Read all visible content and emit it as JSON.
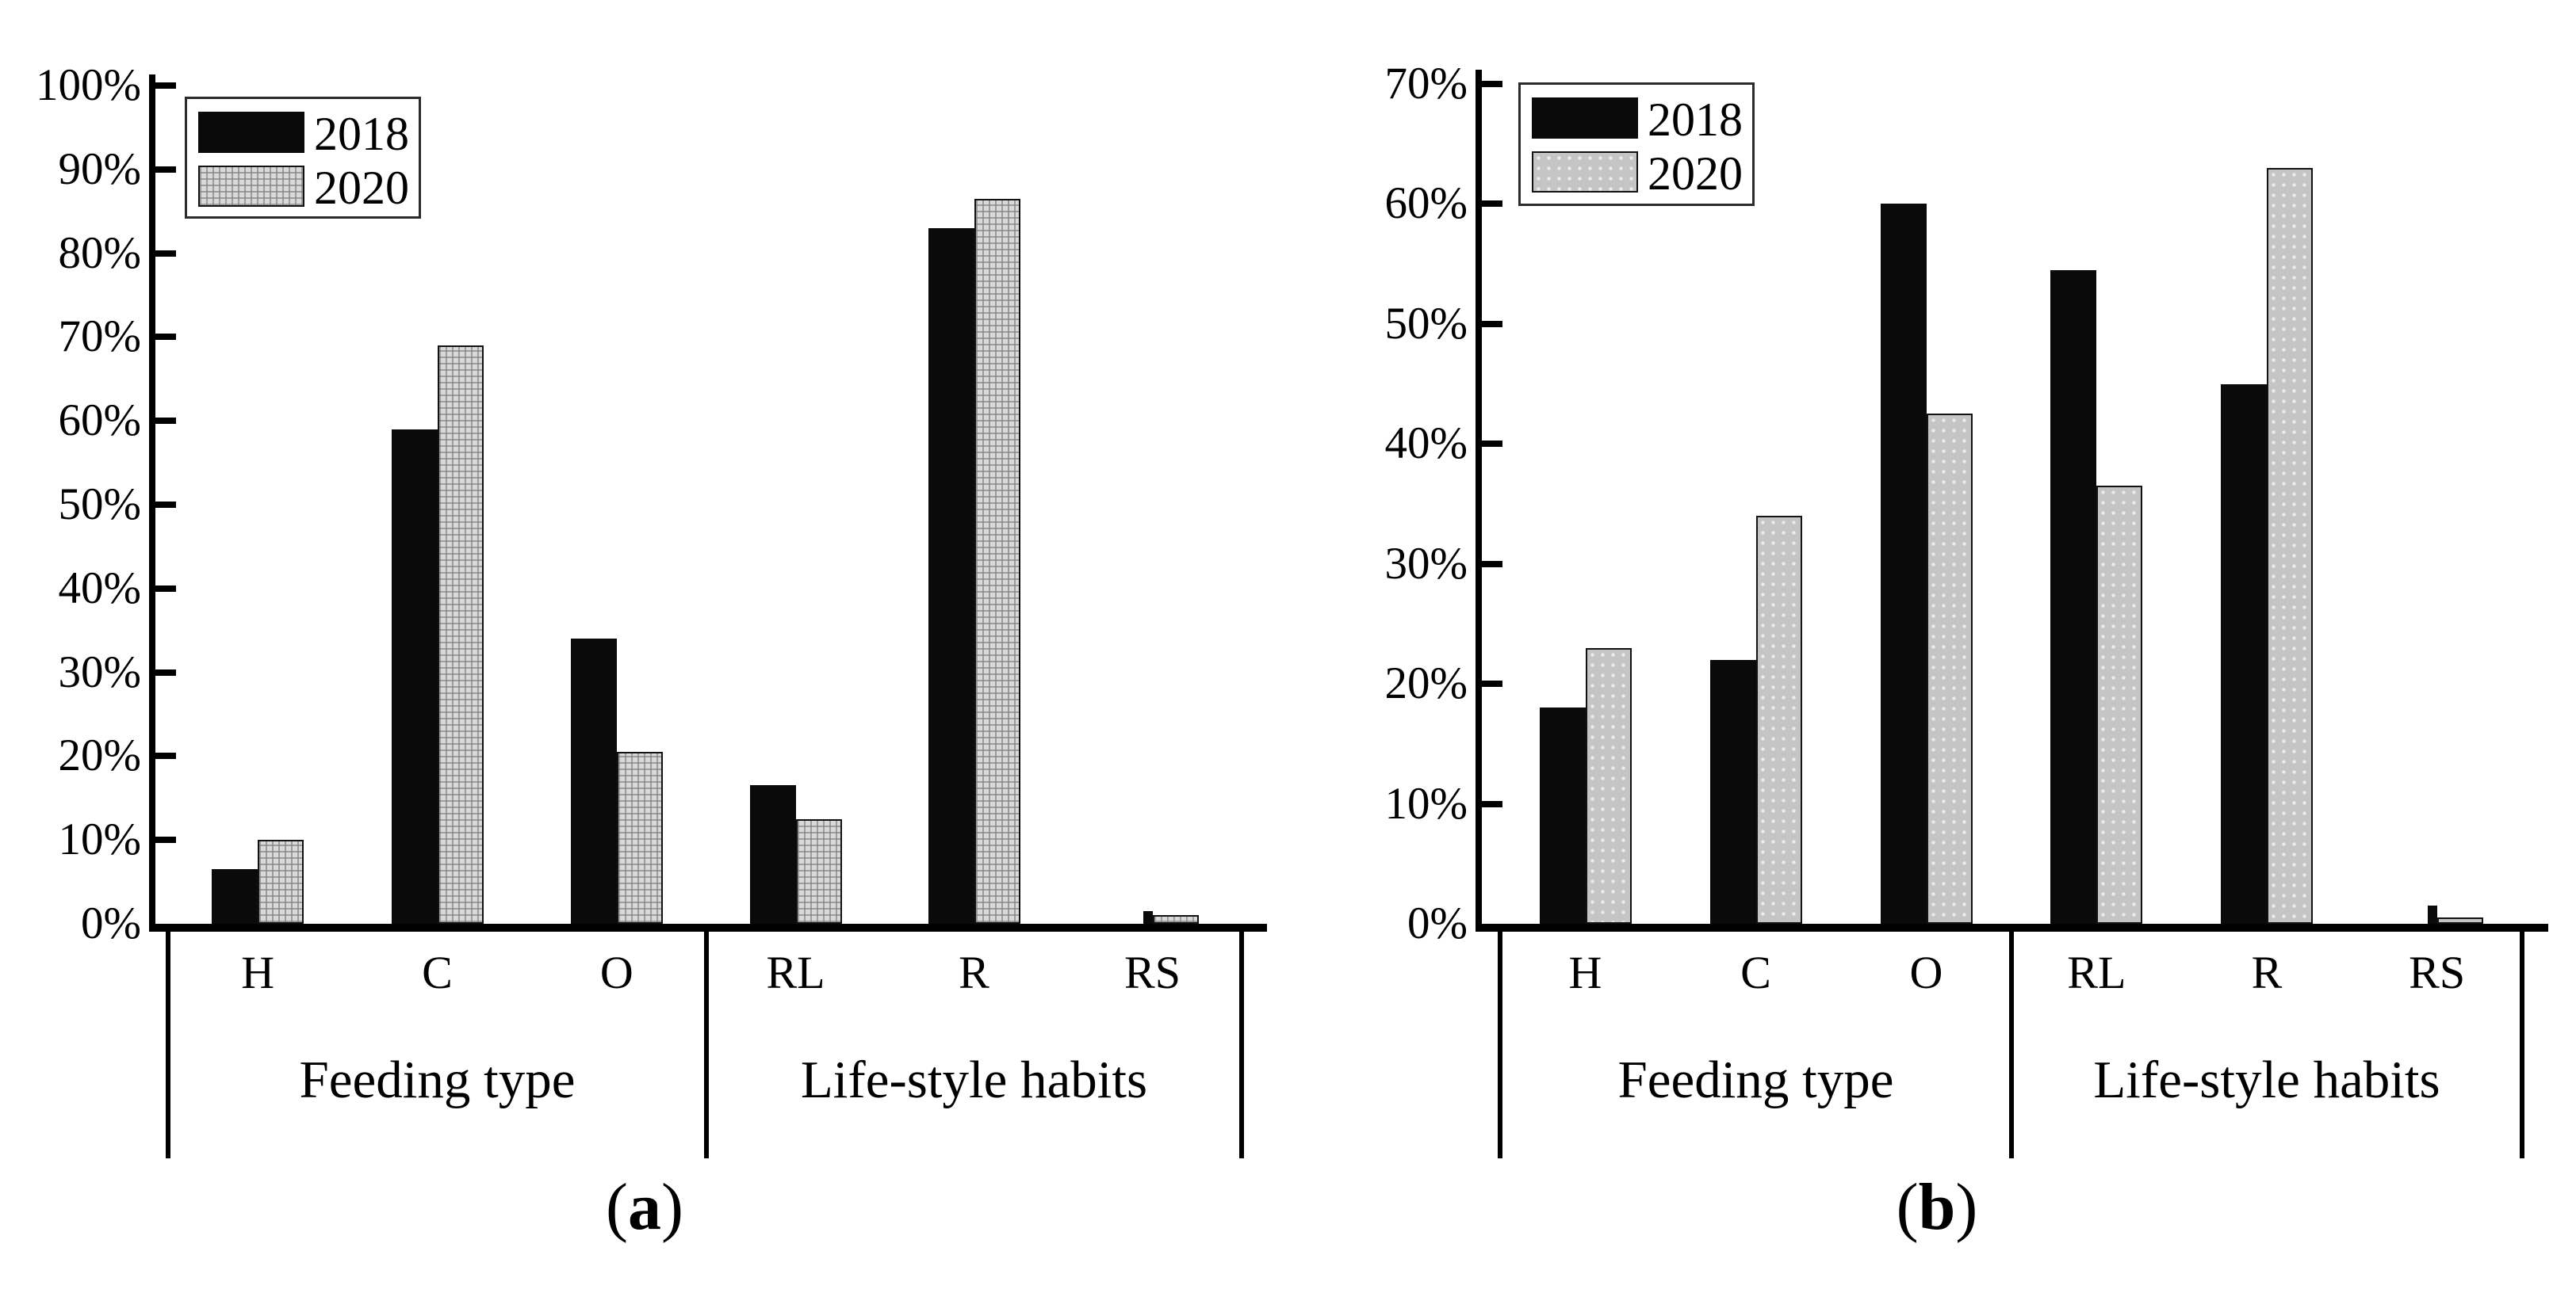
{
  "figure": {
    "type": "two-panel grouped bar figure",
    "background": "#ffffff",
    "bar_color_2018": "#0a0a0a",
    "bar_color_2020_a": "#d9d9d9",
    "bar_color_2020_b": "#c5c5c5"
  },
  "chart_data": [
    {
      "type": "bar",
      "panel": "a",
      "caption": {
        "open": "(",
        "letter": "a",
        "close": ")"
      },
      "categories": [
        "H",
        "C",
        "O",
        "RL",
        "R",
        "RS"
      ],
      "series": [
        {
          "name": "2018",
          "values": [
            6.5,
            59,
            34,
            16.5,
            83,
            1.5
          ],
          "fill": "#0a0a0a",
          "pattern": "solid"
        },
        {
          "name": "2020",
          "values": [
            10,
            69,
            20.5,
            12.5,
            86.5,
            1
          ],
          "fill": "#d9d9d9",
          "pattern": "crosshatch",
          "border": "#121212"
        }
      ],
      "group_labels": [
        {
          "label": "Feeding type",
          "categories": [
            "H",
            "C",
            "O"
          ]
        },
        {
          "label": "Life-style habits",
          "categories": [
            "RL",
            "R",
            "RS"
          ]
        }
      ],
      "ylim": [
        0,
        100
      ],
      "y_ticks": [
        "0%",
        "10%",
        "20%",
        "30%",
        "40%",
        "50%",
        "60%",
        "70%",
        "80%",
        "90%",
        "100%"
      ],
      "xlabel": "",
      "ylabel": "",
      "legend": {
        "position": "top-left",
        "entries": [
          "2018",
          "2020"
        ]
      },
      "grid": false
    },
    {
      "type": "bar",
      "panel": "b",
      "caption": {
        "open": "(",
        "letter": "b",
        "close": ")"
      },
      "categories": [
        "H",
        "C",
        "O",
        "RL",
        "R",
        "RS"
      ],
      "series": [
        {
          "name": "2018",
          "values": [
            18,
            22,
            60,
            54.5,
            45,
            1.5
          ],
          "fill": "#0a0a0a",
          "pattern": "solid"
        },
        {
          "name": "2020",
          "values": [
            23,
            34,
            42.5,
            36.5,
            63,
            0.5
          ],
          "fill": "#c5c5c5",
          "pattern": "dots",
          "border": "#121212"
        }
      ],
      "group_labels": [
        {
          "label": "Feeding type",
          "categories": [
            "H",
            "C",
            "O"
          ]
        },
        {
          "label": "Life-style habits",
          "categories": [
            "RL",
            "R",
            "RS"
          ]
        }
      ],
      "ylim": [
        0,
        70
      ],
      "y_ticks": [
        "0%",
        "10%",
        "20%",
        "30%",
        "40%",
        "50%",
        "60%",
        "70%"
      ],
      "xlabel": "",
      "ylabel": "",
      "legend": {
        "position": "top-left",
        "entries": [
          "2018",
          "2020"
        ]
      },
      "grid": false
    }
  ]
}
